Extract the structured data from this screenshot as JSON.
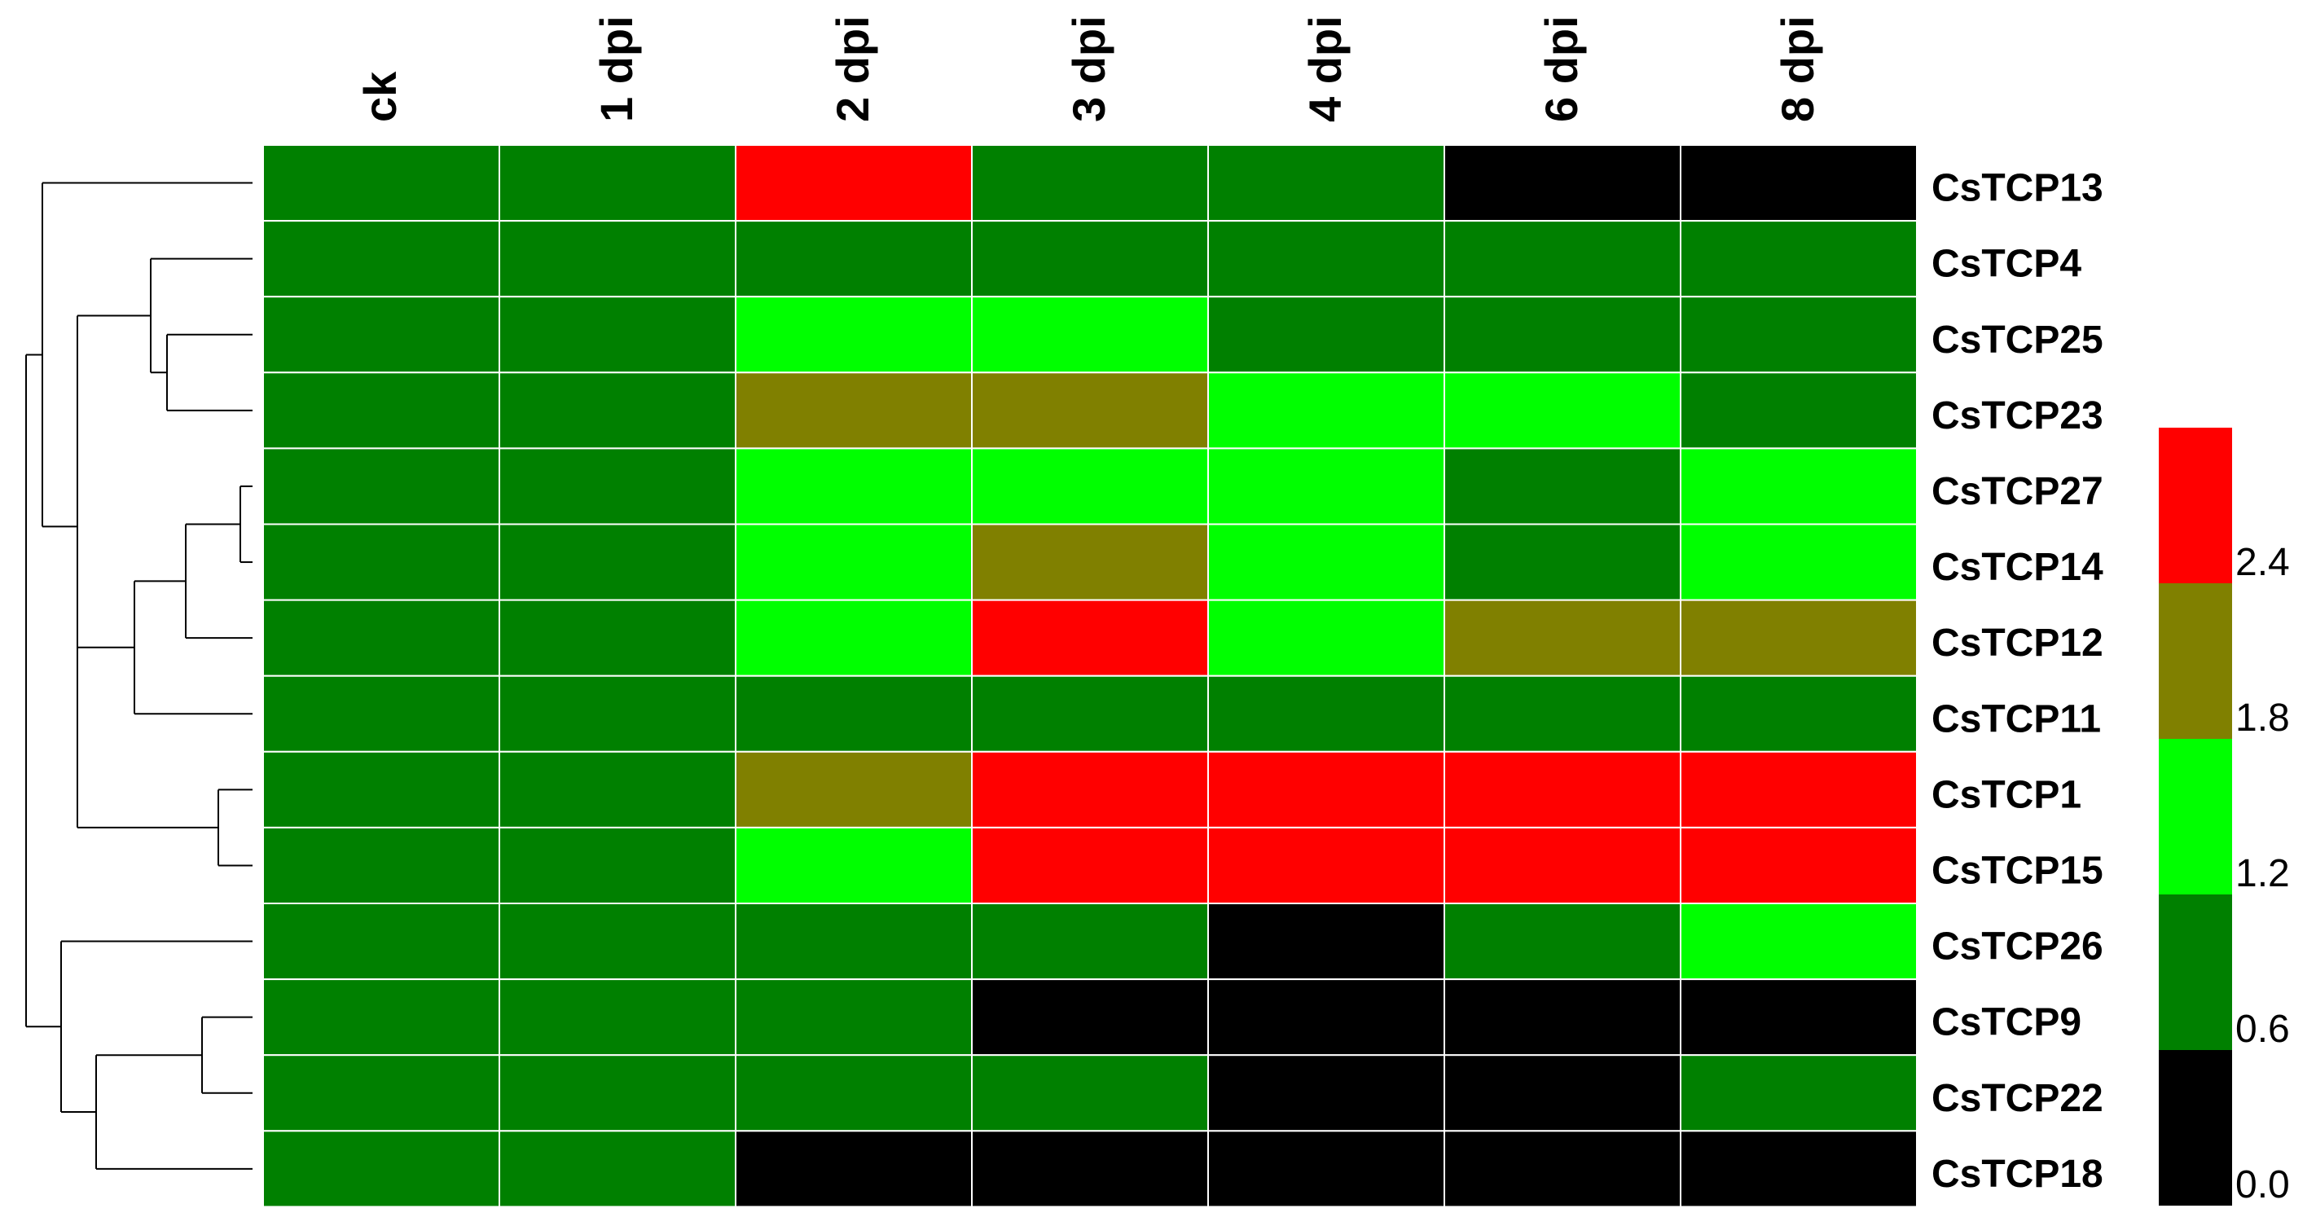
{
  "chart_data": {
    "type": "heatmap",
    "columns": [
      "ck",
      "1 dpi",
      "2 dpi",
      "3 dpi",
      "4 dpi",
      "6 dpi",
      "8 dpi"
    ],
    "rows": [
      "CsTCP13",
      "CsTCP4",
      "CsTCP25",
      "CsTCP23",
      "CsTCP27",
      "CsTCP14",
      "CsTCP12",
      "CsTCP11",
      "CsTCP1",
      "CsTCP15",
      "CsTCP26",
      "CsTCP9",
      "CsTCP22",
      "CsTCP18"
    ],
    "values": [
      [
        0.9,
        0.9,
        2.7,
        0.9,
        0.9,
        0.3,
        0.3
      ],
      [
        0.9,
        0.9,
        0.9,
        0.9,
        0.9,
        0.9,
        0.9
      ],
      [
        0.9,
        0.9,
        1.5,
        1.5,
        0.9,
        0.9,
        0.9
      ],
      [
        0.9,
        0.9,
        2.1,
        2.1,
        1.5,
        1.5,
        0.9
      ],
      [
        0.9,
        0.9,
        1.5,
        1.5,
        1.5,
        0.9,
        1.5
      ],
      [
        0.9,
        0.9,
        1.5,
        2.1,
        1.5,
        0.9,
        1.5
      ],
      [
        0.9,
        0.9,
        1.5,
        2.7,
        1.5,
        2.1,
        2.1
      ],
      [
        0.9,
        0.9,
        0.9,
        0.9,
        0.9,
        0.9,
        0.9
      ],
      [
        0.9,
        0.9,
        2.1,
        2.7,
        2.7,
        2.7,
        2.7
      ],
      [
        0.9,
        0.9,
        1.5,
        2.7,
        2.7,
        2.7,
        2.7
      ],
      [
        0.9,
        0.9,
        0.9,
        0.9,
        0.3,
        0.9,
        1.5
      ],
      [
        0.9,
        0.9,
        0.9,
        0.3,
        0.3,
        0.3,
        0.3
      ],
      [
        0.9,
        0.9,
        0.9,
        0.9,
        0.3,
        0.3,
        0.9
      ],
      [
        0.9,
        0.9,
        0.3,
        0.3,
        0.3,
        0.3,
        0.3
      ]
    ],
    "color_scale": {
      "breaks": [
        0.0,
        0.6,
        1.2,
        1.8,
        2.4,
        3.0
      ],
      "colors": [
        "#000000",
        "#008000",
        "#00ff00",
        "#808000",
        "#ff0000"
      ],
      "tick_labels": [
        "0.0",
        "0.6",
        "1.2",
        "1.8",
        "2.4"
      ]
    },
    "legend_position": "right",
    "dendrogram": {
      "side": "left",
      "merges": [
        [
          1,
          2,
          0.95
        ],
        [
          3,
          4,
          0.92
        ],
        [
          0,
          1,
          0.9
        ],
        [
          2,
          3,
          0.8
        ],
        [
          5,
          6,
          0.72
        ],
        [
          8,
          9,
          0.85
        ],
        [
          10,
          11,
          0.6
        ],
        [
          7,
          8,
          0.55
        ],
        [
          12,
          13,
          0.3
        ],
        [
          9,
          10,
          0.18
        ],
        [
          4,
          5,
          0.08
        ],
        [
          0,
          0,
          0.15
        ]
      ]
    }
  }
}
